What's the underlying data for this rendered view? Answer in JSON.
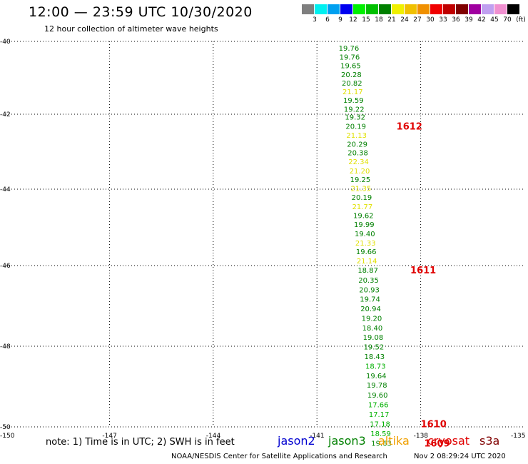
{
  "title": "12:00 — 23:59 UTC 10/30/2020",
  "subtitle": "12 hour collection of altimeter wave heights",
  "legend": {
    "unit": "(ft)",
    "items": [
      {
        "label": "3",
        "color": "#7f7f7f"
      },
      {
        "label": "6",
        "color": "#00f0f0"
      },
      {
        "label": "9",
        "color": "#00a0f0"
      },
      {
        "label": "12",
        "color": "#0000f0"
      },
      {
        "label": "15",
        "color": "#00f000"
      },
      {
        "label": "18",
        "color": "#00c000"
      },
      {
        "label": "21",
        "color": "#008000"
      },
      {
        "label": "24",
        "color": "#f0f000"
      },
      {
        "label": "27",
        "color": "#f0c000"
      },
      {
        "label": "30",
        "color": "#f09000"
      },
      {
        "label": "33",
        "color": "#f00000"
      },
      {
        "label": "36",
        "color": "#c00000"
      },
      {
        "label": "39",
        "color": "#800000"
      },
      {
        "label": "42",
        "color": "#a000a0"
      },
      {
        "label": "45",
        "color": "#c0a0f0"
      },
      {
        "label": "70",
        "color": "#f090d0"
      },
      {
        "label": "",
        "color": "#000000"
      }
    ]
  },
  "map": {
    "lat_labels": [
      "-40",
      "-42",
      "-44",
      "-46",
      "-48",
      "-50"
    ],
    "lon_labels": [
      "-150",
      "-147",
      "-144",
      "-141",
      "-138",
      "-135"
    ],
    "lat_range": [
      -40,
      -50.3
    ],
    "lon_range": [
      -150,
      -135
    ],
    "observations": [
      {
        "value": "19.76",
        "lat": -40.18,
        "lon": -140.0,
        "color": "#008000"
      },
      {
        "value": "19.76",
        "lat": -40.42,
        "lon": -139.98,
        "color": "#008000"
      },
      {
        "value": "19.65",
        "lat": -40.66,
        "lon": -139.95,
        "color": "#008000"
      },
      {
        "value": "20.28",
        "lat": -40.9,
        "lon": -139.93,
        "color": "#008000"
      },
      {
        "value": "20.82",
        "lat": -41.14,
        "lon": -139.91,
        "color": "#008000"
      },
      {
        "value": "21.17",
        "lat": -41.37,
        "lon": -139.89,
        "color": "#e0e000"
      },
      {
        "value": "19.59",
        "lat": -41.61,
        "lon": -139.87,
        "color": "#008000"
      },
      {
        "value": "19.22",
        "lat": -41.85,
        "lon": -139.85,
        "color": "#008000"
      },
      {
        "value": "19.32",
        "lat": -42.07,
        "lon": -139.82,
        "color": "#008000"
      },
      {
        "value": "20.19",
        "lat": -42.31,
        "lon": -139.8,
        "color": "#008000"
      },
      {
        "value": "21.13",
        "lat": -42.55,
        "lon": -139.78,
        "color": "#e0e000"
      },
      {
        "value": "20.29",
        "lat": -42.79,
        "lon": -139.76,
        "color": "#008000"
      },
      {
        "value": "20.38",
        "lat": -43.02,
        "lon": -139.74,
        "color": "#008000"
      },
      {
        "value": "22.34",
        "lat": -43.26,
        "lon": -139.72,
        "color": "#e0e000"
      },
      {
        "value": "21.20",
        "lat": -43.5,
        "lon": -139.69,
        "color": "#e0e000"
      },
      {
        "value": "19.25",
        "lat": -43.73,
        "lon": -139.67,
        "color": "#008000"
      },
      {
        "value": "21.35",
        "lat": -43.97,
        "lon": -139.65,
        "color": "#e0e000"
      },
      {
        "value": "20.19",
        "lat": -44.21,
        "lon": -139.63,
        "color": "#008000"
      },
      {
        "value": "21.77",
        "lat": -44.45,
        "lon": -139.61,
        "color": "#e0e000"
      },
      {
        "value": "19.62",
        "lat": -44.68,
        "lon": -139.58,
        "color": "#008000"
      },
      {
        "value": "19.99",
        "lat": -44.92,
        "lon": -139.56,
        "color": "#008000"
      },
      {
        "value": "19.40",
        "lat": -45.16,
        "lon": -139.54,
        "color": "#008000"
      },
      {
        "value": "21.33",
        "lat": -45.4,
        "lon": -139.52,
        "color": "#e0e000"
      },
      {
        "value": "19.66",
        "lat": -45.63,
        "lon": -139.5,
        "color": "#008000"
      },
      {
        "value": "21.14",
        "lat": -45.87,
        "lon": -139.48,
        "color": "#e0e000"
      },
      {
        "value": "18.87",
        "lat": -46.11,
        "lon": -139.45,
        "color": "#008000"
      },
      {
        "value": "20.35",
        "lat": -46.35,
        "lon": -139.43,
        "color": "#008000"
      },
      {
        "value": "20.93",
        "lat": -46.59,
        "lon": -139.41,
        "color": "#008000"
      },
      {
        "value": "19.74",
        "lat": -46.82,
        "lon": -139.39,
        "color": "#008000"
      },
      {
        "value": "20.94",
        "lat": -47.06,
        "lon": -139.37,
        "color": "#008000"
      },
      {
        "value": "19.20",
        "lat": -47.3,
        "lon": -139.34,
        "color": "#008000"
      },
      {
        "value": "18.40",
        "lat": -47.54,
        "lon": -139.32,
        "color": "#008000"
      },
      {
        "value": "19.08",
        "lat": -47.77,
        "lon": -139.3,
        "color": "#008000"
      },
      {
        "value": "19.52",
        "lat": -48.01,
        "lon": -139.28,
        "color": "#008000"
      },
      {
        "value": "18.43",
        "lat": -48.25,
        "lon": -139.26,
        "color": "#008000"
      },
      {
        "value": "18.73",
        "lat": -48.49,
        "lon": -139.23,
        "color": "#00b000"
      },
      {
        "value": "19.64",
        "lat": -48.73,
        "lon": -139.21,
        "color": "#008000"
      },
      {
        "value": "19.78",
        "lat": -48.96,
        "lon": -139.19,
        "color": "#008000"
      },
      {
        "value": "19.60",
        "lat": -49.2,
        "lon": -139.17,
        "color": "#008000"
      },
      {
        "value": "17.66",
        "lat": -49.44,
        "lon": -139.15,
        "color": "#00b000"
      },
      {
        "value": "17.17",
        "lat": -49.68,
        "lon": -139.13,
        "color": "#00b000"
      },
      {
        "value": "17.18",
        "lat": -49.92,
        "lon": -139.1,
        "color": "#00b000"
      },
      {
        "value": "18.59",
        "lat": -50.16,
        "lon": -139.08,
        "color": "#00b000"
      },
      {
        "value": "19.63",
        "lat": -50.4,
        "lon": -139.06,
        "color": "#008000"
      }
    ],
    "ship_labels": [
      {
        "text": "1612",
        "lat": -42.31,
        "lon": -138.7
      },
      {
        "text": "1611",
        "lat": -46.11,
        "lon": -138.3
      },
      {
        "text": "1610",
        "lat": -49.92,
        "lon": -138.0
      },
      {
        "text": "1609",
        "lat": -50.4,
        "lon": -137.9
      }
    ]
  },
  "note": "note:  1) Time is in UTC;  2) SWH is in feet",
  "satellites": [
    {
      "name": "jason2",
      "color": "#0000d0"
    },
    {
      "name": "jason3",
      "color": "#008000"
    },
    {
      "name": "altika",
      "color": "#f0a000"
    },
    {
      "name": "cryosat",
      "color": "#e00000"
    },
    {
      "name": "s3a",
      "color": "#800000"
    }
  ],
  "credit": "NOAA/NESDIS Center for Satellite Applications and Research",
  "timestamp": "Nov  2 08:29:24 UTC 2020"
}
